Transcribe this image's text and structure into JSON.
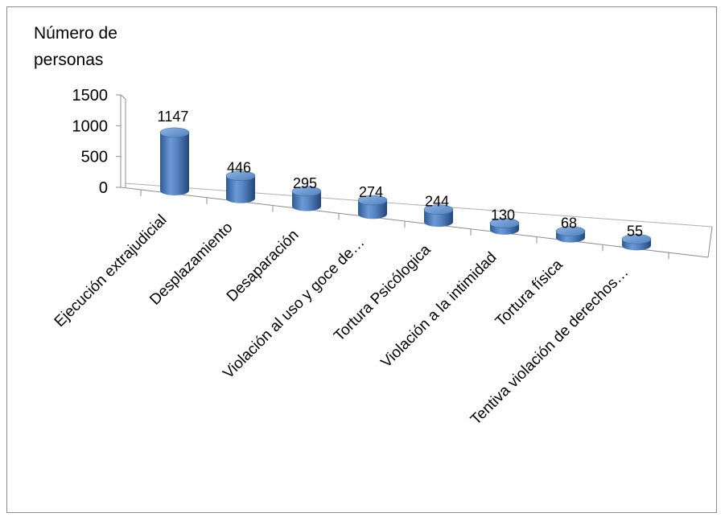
{
  "chart_data": {
    "type": "bar",
    "style": "3d-cylinder",
    "title": "",
    "ylabel_lines": [
      "Número de",
      "personas"
    ],
    "xlabel": "",
    "ylim": [
      0,
      1500
    ],
    "yticks": [
      0,
      500,
      1000,
      1500
    ],
    "grid": false,
    "legend": "none",
    "bar_color": "#4f81bd",
    "categories": [
      "Ejecución extrajudicial",
      "Desplazamiento",
      "Desaparación",
      "Violación al uso y goce de…",
      "Tortura Psicólogica",
      "Violación a la intimidad",
      "Tortura física",
      "Tentiva violación de derechos…"
    ],
    "values": [
      1147,
      446,
      295,
      274,
      244,
      130,
      68,
      55
    ]
  }
}
